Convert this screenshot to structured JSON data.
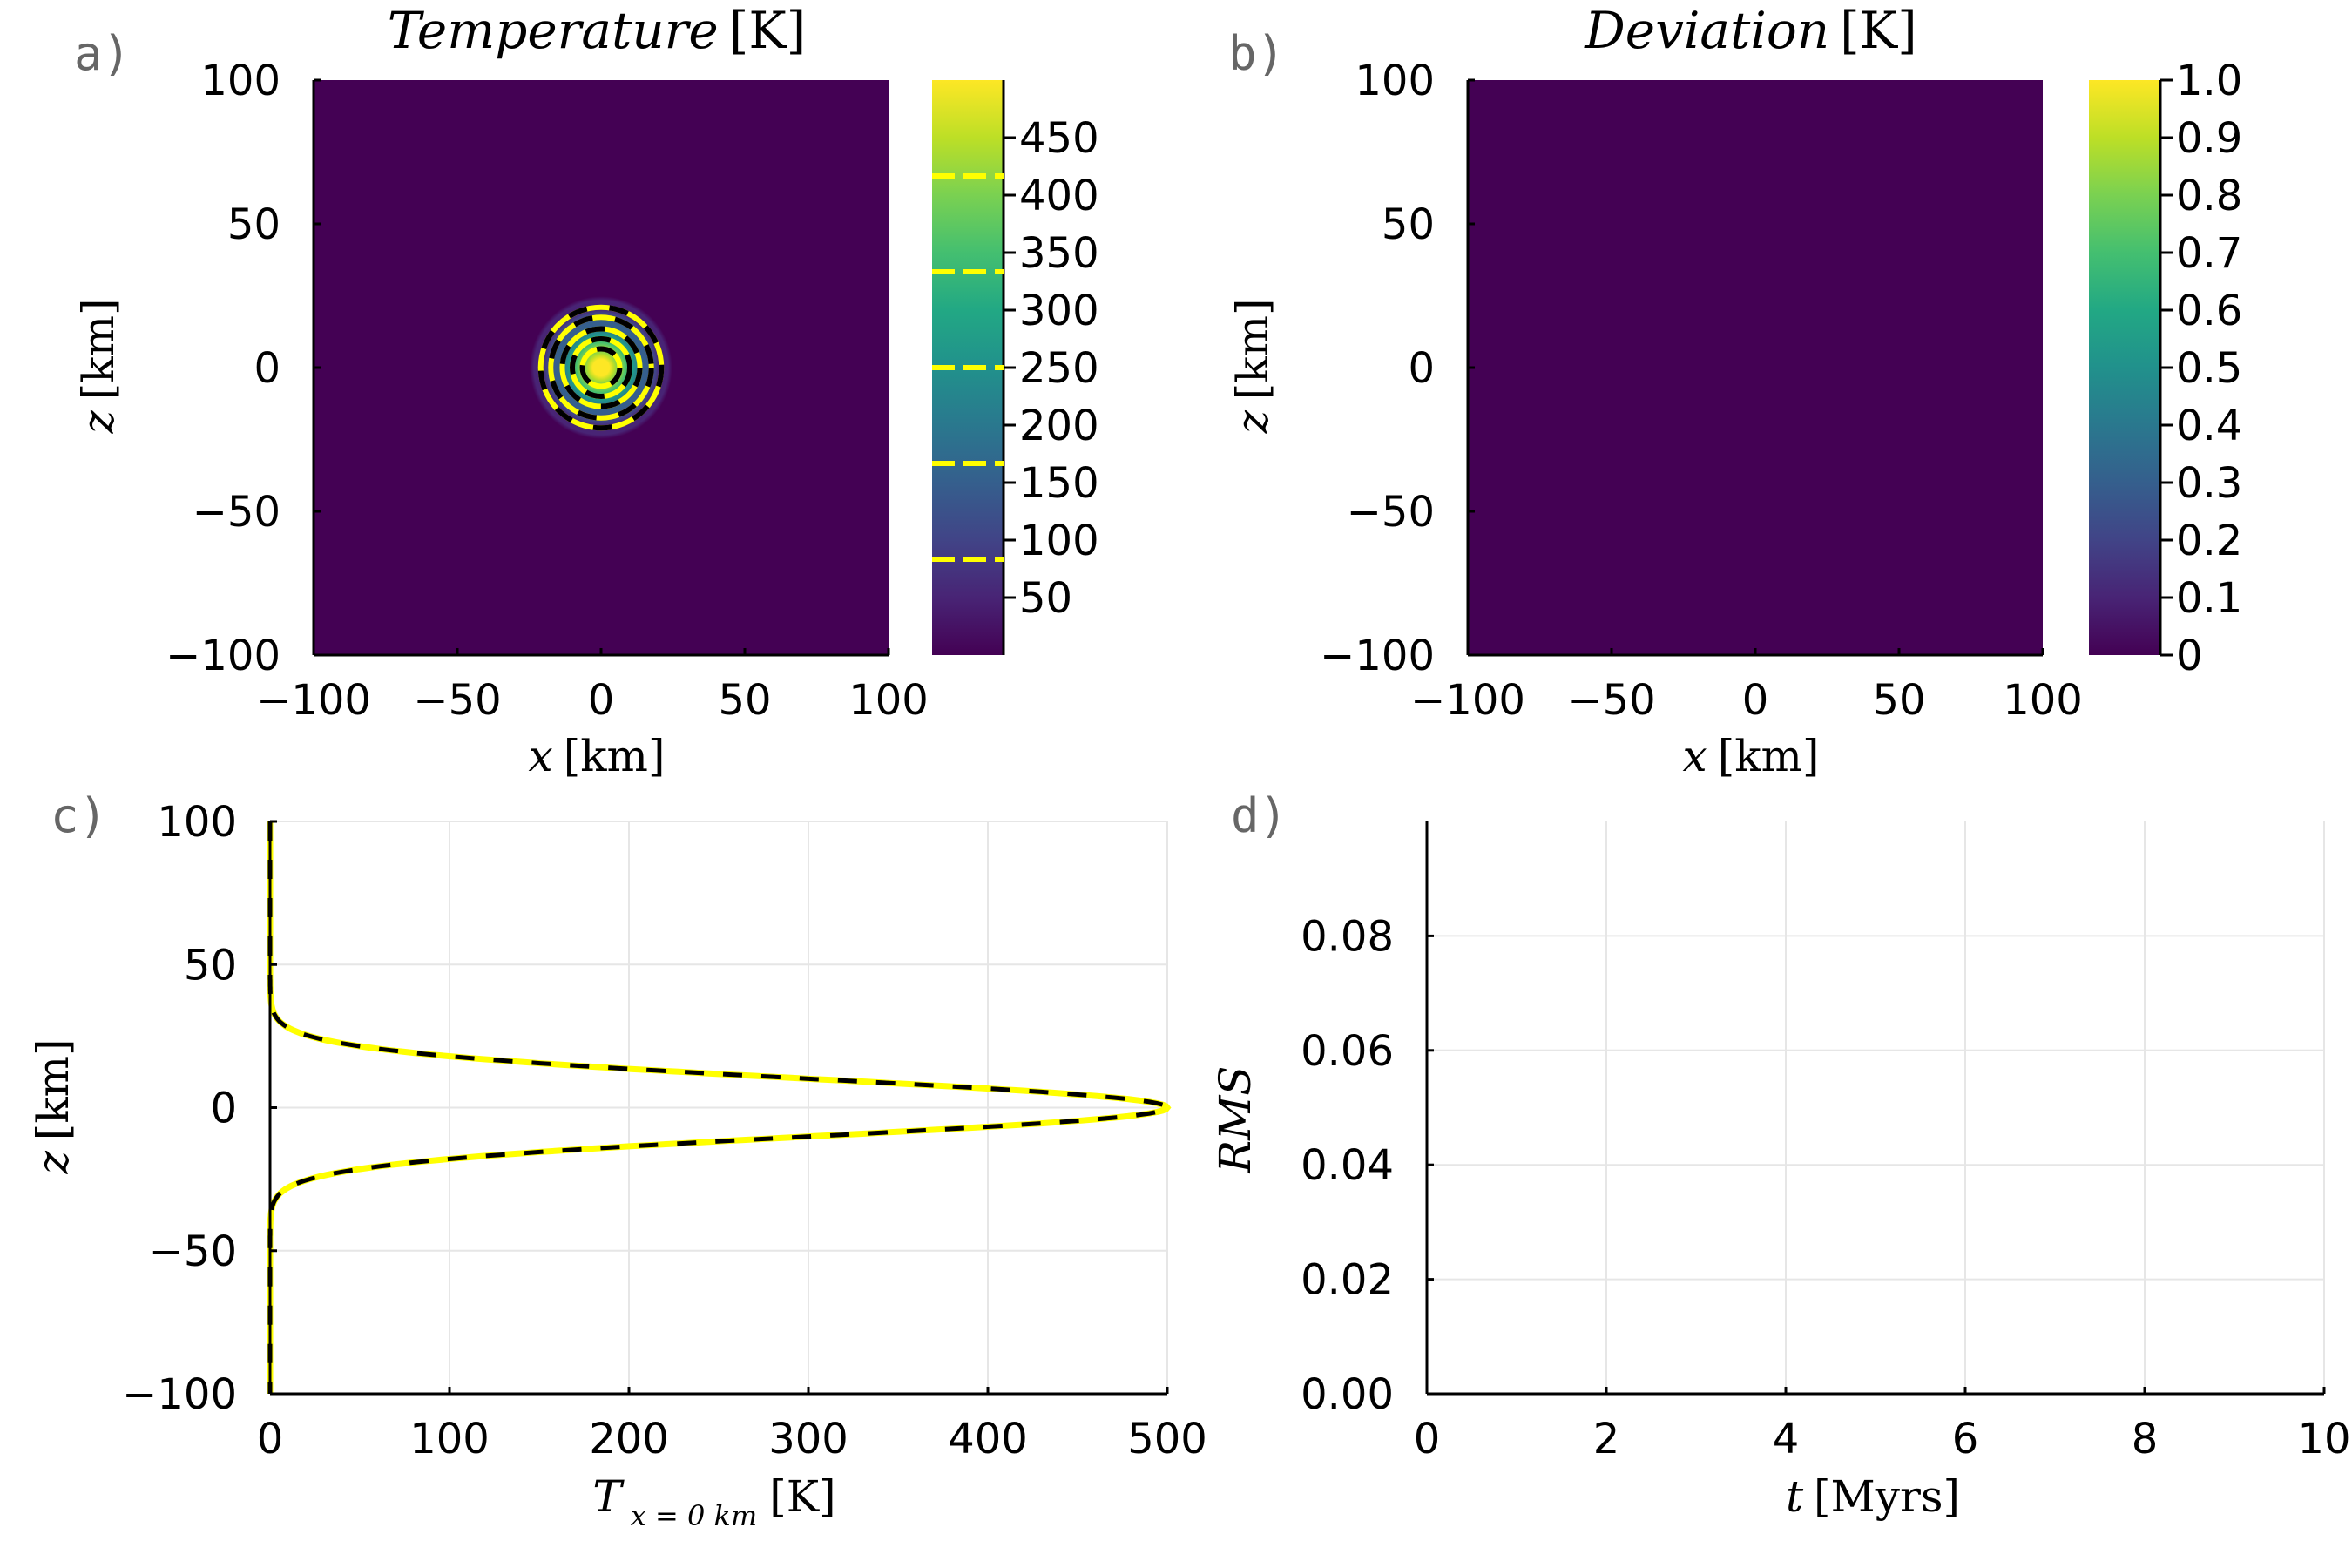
{
  "colors": {
    "viridis": [
      "#440154",
      "#482475",
      "#414487",
      "#355f8d",
      "#2a788e",
      "#21918c",
      "#22a884",
      "#44bf70",
      "#7ad151",
      "#bddf26",
      "#fde725"
    ],
    "contour": "#ffff00",
    "dash_dark": "#000000",
    "grid": "#e6e6e6"
  },
  "chart_data": [
    {
      "id": "a",
      "type": "heatmap",
      "panel_label": "a)",
      "title_parts": [
        "Temperature",
        "[K]"
      ],
      "xlabel_parts": [
        "x",
        "[km]"
      ],
      "ylabel_parts": [
        "z",
        "[km]"
      ],
      "xlim": [
        -100,
        100
      ],
      "ylim": [
        -100,
        100
      ],
      "xticks": [
        -100,
        -50,
        0,
        50,
        100
      ],
      "xtick_labels": [
        "−100",
        "−50",
        "0",
        "50",
        "100"
      ],
      "yticks": [
        -100,
        -50,
        0,
        50,
        100
      ],
      "ytick_labels": [
        "−100",
        "−50",
        "0",
        "50",
        "100"
      ],
      "field": {
        "kind": "gaussian",
        "center": [
          0,
          0
        ],
        "peak": 500,
        "width_km": 10
      },
      "contour_radii_km": [
        6.5,
        10,
        13.5,
        17.5,
        21
      ],
      "colorbar": {
        "range": [
          0,
          500
        ],
        "ticks": [
          50,
          100,
          150,
          200,
          250,
          300,
          350,
          400,
          450
        ],
        "tick_labels": [
          "50",
          "100",
          "150",
          "200",
          "250",
          "300",
          "350",
          "400",
          "450"
        ],
        "contour_levels": [
          83.3,
          166.7,
          250,
          333.3,
          416.7
        ]
      }
    },
    {
      "id": "b",
      "type": "heatmap",
      "panel_label": "b)",
      "title_parts": [
        "Deviation",
        "[K]"
      ],
      "xlabel_parts": [
        "x",
        "[km]"
      ],
      "ylabel_parts": [
        "z",
        "[km]"
      ],
      "xlim": [
        -100,
        100
      ],
      "ylim": [
        -100,
        100
      ],
      "xticks": [
        -100,
        -50,
        0,
        50,
        100
      ],
      "xtick_labels": [
        "−100",
        "−50",
        "0",
        "50",
        "100"
      ],
      "yticks": [
        -100,
        -50,
        0,
        50,
        100
      ],
      "ytick_labels": [
        "−100",
        "−50",
        "0",
        "50",
        "100"
      ],
      "field": {
        "kind": "constant",
        "value": 0
      },
      "colorbar": {
        "range": [
          0,
          1
        ],
        "ticks": [
          0,
          0.1,
          0.2,
          0.3,
          0.4,
          0.5,
          0.6,
          0.7,
          0.8,
          0.9,
          1.0
        ],
        "tick_labels": [
          "0",
          "0.1",
          "0.2",
          "0.3",
          "0.4",
          "0.5",
          "0.6",
          "0.7",
          "0.8",
          "0.9",
          "1.0"
        ]
      }
    },
    {
      "id": "c",
      "type": "line",
      "panel_label": "c)",
      "xlabel_parts": [
        "T",
        "x = 0 km",
        "[K]"
      ],
      "ylabel_parts": [
        "z",
        "[km]"
      ],
      "xlim": [
        0,
        500
      ],
      "ylim": [
        -100,
        100
      ],
      "xticks": [
        0,
        100,
        200,
        300,
        400,
        500
      ],
      "xtick_labels": [
        "0",
        "100",
        "200",
        "300",
        "400",
        "500"
      ],
      "yticks": [
        -100,
        -50,
        0,
        50,
        100
      ],
      "ytick_labels": [
        "−100",
        "−50",
        "0",
        "50",
        "100"
      ],
      "grid": true,
      "profile": {
        "kind": "gaussian",
        "peak": 500,
        "width_km": 10,
        "z_range": [
          -100,
          100
        ]
      },
      "series_styles": [
        "solid-yellow",
        "dashed-black"
      ]
    },
    {
      "id": "d",
      "type": "line",
      "panel_label": "d)",
      "xlabel_parts": [
        "t",
        "[Myrs]"
      ],
      "ylabel_parts": [
        "RMS"
      ],
      "xlim": [
        0,
        10
      ],
      "ylim": [
        0,
        0.1
      ],
      "xticks": [
        0,
        2,
        4,
        6,
        8,
        10
      ],
      "xtick_labels": [
        "0",
        "2",
        "4",
        "6",
        "8",
        "10"
      ],
      "yticks": [
        0,
        0.02,
        0.04,
        0.06,
        0.08
      ],
      "ytick_labels": [
        "0.00",
        "0.02",
        "0.04",
        "0.06",
        "0.08"
      ],
      "grid": true,
      "series": []
    }
  ]
}
